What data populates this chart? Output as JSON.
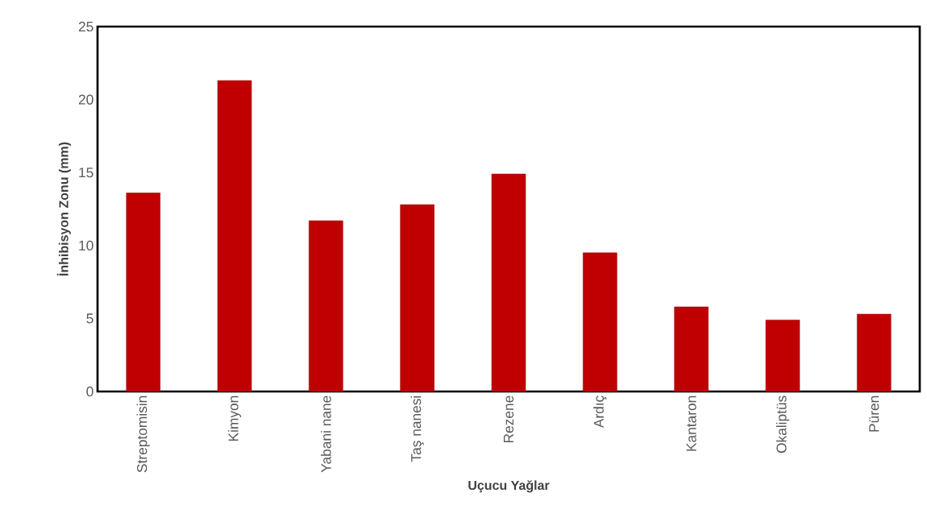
{
  "chart_data": {
    "type": "bar",
    "xlabel": "Uçucu Yağlar",
    "ylabel": "İnhibisyon Zonu (mm)",
    "categories": [
      "Streptomisin",
      "Kimyon",
      "Yabani nane",
      "Taş nanesi",
      "Rezene",
      "Ardıç",
      "Kantaron",
      "Okaliptüs",
      "Püren"
    ],
    "values": [
      13.6,
      21.3,
      11.7,
      12.8,
      14.9,
      9.5,
      5.8,
      4.9,
      5.3
    ],
    "color": "#c00000",
    "ylim": [
      0,
      25
    ],
    "yticks": [
      0,
      5,
      10,
      15,
      20,
      25
    ]
  }
}
